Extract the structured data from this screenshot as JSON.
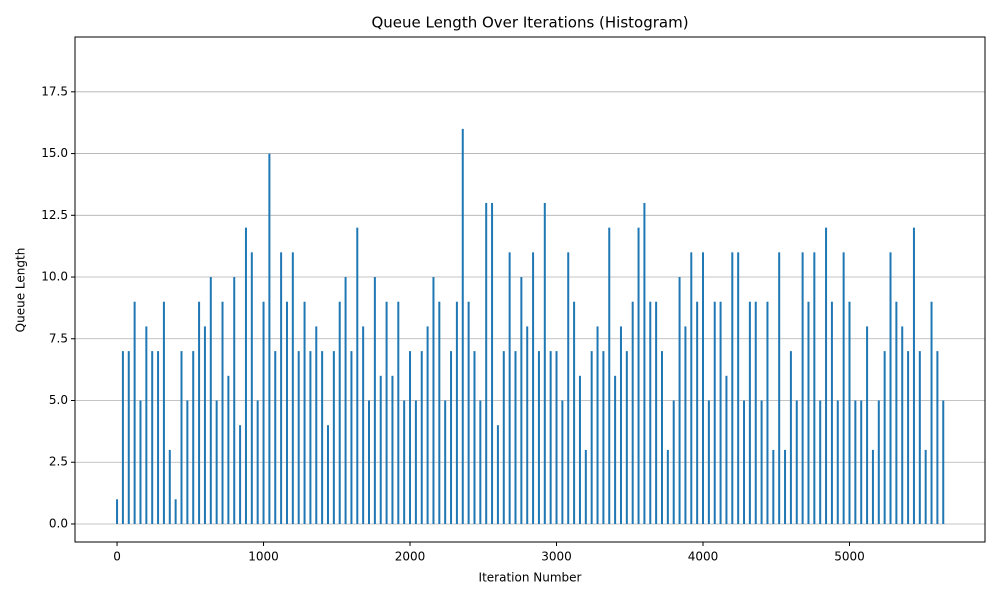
{
  "chart_data": {
    "type": "bar",
    "title": "Queue Length Over Iterations (Histogram)",
    "x_label": "Iteration Number",
    "y_label": "Queue Length",
    "color": "#1f77b4",
    "grid": true,
    "xlim": [
      -287,
      5925
    ],
    "ylim": [
      -0.73,
      19.72
    ],
    "xticks": [
      0,
      1000,
      2000,
      3000,
      4000,
      5000
    ],
    "yticks": [
      {
        "value": 0,
        "label": "0.0"
      },
      2.5,
      {
        "value": 5,
        "label": "5.0"
      },
      7.5,
      {
        "value": 10,
        "label": "10.0"
      },
      12.5,
      {
        "value": 15,
        "label": "15.0"
      },
      17.5
    ],
    "x": [
      0,
      40,
      80,
      120,
      160,
      200,
      240,
      280,
      320,
      360,
      400,
      440,
      480,
      520,
      560,
      600,
      640,
      680,
      720,
      760,
      800,
      840,
      880,
      920,
      960,
      1000,
      1040,
      1080,
      1120,
      1160,
      1200,
      1240,
      1280,
      1320,
      1360,
      1400,
      1440,
      1480,
      1520,
      1560,
      1600,
      1640,
      1680,
      1720,
      1760,
      1800,
      1840,
      1880,
      1920,
      1960,
      2000,
      2040,
      2080,
      2120,
      2160,
      2200,
      2240,
      2280,
      2320,
      2360,
      2400,
      2440,
      2480,
      2520,
      2560,
      2600,
      2640,
      2680,
      2720,
      2760,
      2800,
      2840,
      2880,
      2920,
      2960,
      3000,
      3040,
      3080,
      3120,
      3160,
      3200,
      3240,
      3280,
      3320,
      3360,
      3400,
      3440,
      3480,
      3520,
      3560,
      3600,
      3640,
      3680,
      3720,
      3760,
      3800,
      3840,
      3880,
      3920,
      3960,
      4000,
      4040,
      4080,
      4120,
      4160,
      4200,
      4240,
      4280,
      4320,
      4360,
      4400,
      4440,
      4480,
      4520,
      4560,
      4600,
      4640,
      4680,
      4720,
      4760,
      4800,
      4840,
      4880,
      4920,
      4960,
      5000,
      5040,
      5080,
      5120,
      5160,
      5200,
      5240,
      5280,
      5320,
      5360,
      5400,
      5440,
      5480,
      5520,
      5560,
      5600,
      5640
    ],
    "values": [
      1,
      7,
      7,
      9,
      5,
      8,
      7,
      7,
      9,
      3,
      1,
      7,
      5,
      7,
      9,
      8,
      10,
      5,
      9,
      6,
      10,
      4,
      12,
      11,
      5,
      9,
      15,
      7,
      11,
      9,
      11,
      7,
      9,
      7,
      8,
      7,
      4,
      7,
      9,
      10,
      7,
      12,
      8,
      5,
      10,
      6,
      9,
      6,
      9,
      5,
      7,
      5,
      7,
      8,
      10,
      9,
      5,
      7,
      9,
      16,
      9,
      7,
      5,
      13,
      13,
      4,
      7,
      11,
      7,
      10,
      8,
      11,
      7,
      13,
      7,
      7,
      5,
      11,
      9,
      6,
      3,
      7,
      8,
      7,
      12,
      6,
      8,
      7,
      9,
      12,
      13,
      9,
      9,
      7,
      3,
      5,
      10,
      8,
      11,
      9,
      11,
      5,
      9,
      9,
      6,
      11,
      11,
      5,
      9,
      9,
      5,
      9,
      3,
      11,
      3,
      7,
      5,
      11,
      9,
      11,
      5,
      12,
      9,
      5,
      11,
      9,
      5,
      5,
      8,
      3,
      5,
      7,
      11,
      9,
      8,
      7,
      12,
      7,
      3,
      9,
      7,
      5
    ]
  }
}
